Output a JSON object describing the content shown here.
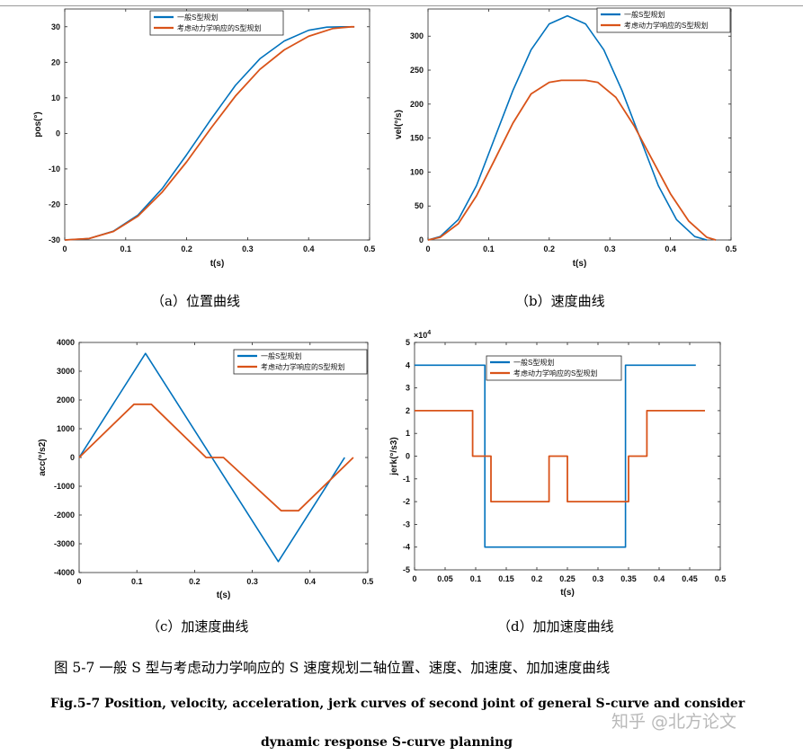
{
  "charts": [
    {
      "id": "a",
      "type": "line",
      "xlabel": "t(s)",
      "ylabel": "pos(°)",
      "xlim": [
        0,
        0.5
      ],
      "ylim": [
        -30,
        35
      ],
      "xticks": [
        0,
        0.1,
        0.2,
        0.3,
        0.4,
        0.5
      ],
      "yticks": [
        -30,
        -20,
        -10,
        0,
        10,
        20,
        30
      ],
      "xtick_labels": [
        "0",
        "0.1",
        "0.2",
        "0.3",
        "0.4",
        "0.5"
      ],
      "ytick_labels": [
        "-30",
        "-20",
        "-10",
        "0",
        "10",
        "20",
        "30"
      ],
      "legend": {
        "position": "top-center",
        "entries": [
          "一般S型规划",
          "考虑动力学响应的S型规划"
        ]
      },
      "series": [
        {
          "name": "一般S型规划",
          "color": "#0072BD",
          "x": [
            0,
            0.04,
            0.08,
            0.12,
            0.16,
            0.2,
            0.24,
            0.28,
            0.32,
            0.36,
            0.4,
            0.43,
            0.46,
            0.475
          ],
          "y": [
            -30,
            -29.6,
            -27.5,
            -23,
            -15.5,
            -6,
            4,
            13.5,
            21,
            26,
            29,
            29.9,
            30,
            30
          ]
        },
        {
          "name": "考虑动力学响应的S型规划",
          "color": "#D95319",
          "x": [
            0,
            0.04,
            0.08,
            0.12,
            0.16,
            0.2,
            0.24,
            0.28,
            0.32,
            0.36,
            0.4,
            0.44,
            0.47,
            0.475
          ],
          "y": [
            -30,
            -29.6,
            -27.6,
            -23.3,
            -16.5,
            -8,
            1.5,
            10.5,
            18,
            23.5,
            27.3,
            29.5,
            30,
            30
          ]
        }
      ]
    },
    {
      "id": "b",
      "type": "line",
      "xlabel": "t(s)",
      "ylabel": "vel(°/s)",
      "xlim": [
        0,
        0.5
      ],
      "ylim": [
        0,
        340
      ],
      "xticks": [
        0,
        0.1,
        0.2,
        0.3,
        0.4,
        0.5
      ],
      "yticks": [
        0,
        50,
        100,
        150,
        200,
        250,
        300
      ],
      "xtick_labels": [
        "0",
        "0.1",
        "0.2",
        "0.3",
        "0.4",
        "0.5"
      ],
      "ytick_labels": [
        "0",
        "50",
        "100",
        "150",
        "200",
        "250",
        "300"
      ],
      "legend": {
        "position": "top-right",
        "entries": [
          "一般S型规划",
          "考虑动力学响应的S型规划"
        ]
      },
      "series": [
        {
          "name": "一般S型规划",
          "color": "#0072BD",
          "x": [
            0,
            0.02,
            0.05,
            0.08,
            0.11,
            0.14,
            0.17,
            0.2,
            0.23,
            0.26,
            0.29,
            0.32,
            0.35,
            0.38,
            0.41,
            0.44,
            0.46
          ],
          "y": [
            0,
            5,
            30,
            80,
            150,
            220,
            280,
            318,
            330,
            318,
            280,
            220,
            150,
            80,
            30,
            5,
            0
          ]
        },
        {
          "name": "考虑动力学响应的S型规划",
          "color": "#D95319",
          "x": [
            0,
            0.02,
            0.05,
            0.08,
            0.11,
            0.14,
            0.17,
            0.2,
            0.22,
            0.26,
            0.28,
            0.31,
            0.34,
            0.37,
            0.4,
            0.43,
            0.46,
            0.475
          ],
          "y": [
            0,
            4,
            24,
            65,
            118,
            172,
            215,
            232,
            235,
            235,
            232,
            210,
            168,
            118,
            68,
            28,
            4,
            0
          ]
        }
      ]
    },
    {
      "id": "c",
      "type": "line",
      "xlabel": "t(s)",
      "ylabel": "acc(°/s2)",
      "xlim": [
        0,
        0.5
      ],
      "ylim": [
        -4000,
        4000
      ],
      "xticks": [
        0,
        0.1,
        0.2,
        0.3,
        0.4,
        0.5
      ],
      "yticks": [
        -4000,
        -3000,
        -2000,
        -1000,
        0,
        1000,
        2000,
        3000,
        4000
      ],
      "xtick_labels": [
        "0",
        "0.1",
        "0.2",
        "0.3",
        "0.4",
        "0.5"
      ],
      "ytick_labels": [
        "-4000",
        "-3000",
        "-2000",
        "-1000",
        "0",
        "1000",
        "2000",
        "3000",
        "4000"
      ],
      "legend": {
        "position": "top-right",
        "entries": [
          "一般S型规划",
          "考虑动力学响应的S型规划"
        ]
      },
      "series": [
        {
          "name": "一般S型规划",
          "color": "#0072BD",
          "x": [
            0,
            0.115,
            0.345,
            0.46
          ],
          "y": [
            0,
            3620,
            -3620,
            0
          ]
        },
        {
          "name": "考虑动力学响应的S型规划",
          "color": "#D95319",
          "x": [
            0,
            0.095,
            0.125,
            0.22,
            0.25,
            0.35,
            0.38,
            0.475
          ],
          "y": [
            0,
            1850,
            1850,
            0,
            0,
            -1850,
            -1850,
            0
          ]
        }
      ]
    },
    {
      "id": "d",
      "type": "line",
      "xlabel": "t(s)",
      "ylabel": "jerk(°/s3)",
      "exponent_label": "×10",
      "exponent_power": "4",
      "xlim": [
        0,
        0.5
      ],
      "ylim": [
        -5,
        5
      ],
      "xticks": [
        0,
        0.05,
        0.1,
        0.15,
        0.2,
        0.25,
        0.3,
        0.35,
        0.4,
        0.45,
        0.5
      ],
      "yticks": [
        -5,
        -4,
        -3,
        -2,
        -1,
        0,
        1,
        2,
        3,
        4,
        5
      ],
      "xtick_labels": [
        "0",
        "0.05",
        "0.1",
        "0.15",
        "0.2",
        "0.25",
        "0.3",
        "0.35",
        "0.4",
        "0.45",
        "0.5"
      ],
      "ytick_labels": [
        "-5",
        "-4",
        "-3",
        "-2",
        "-1",
        "0",
        "1",
        "2",
        "3",
        "4",
        "5"
      ],
      "legend": {
        "position": "top-center",
        "entries": [
          "一般S型规划",
          "考虑动力学响应的S型规划"
        ]
      },
      "series": [
        {
          "name": "一般S型规划",
          "color": "#0072BD",
          "x": [
            0,
            0.115,
            0.115,
            0.345,
            0.345,
            0.46
          ],
          "y": [
            4,
            4,
            -4,
            -4,
            4,
            4
          ]
        },
        {
          "name": "考虑动力学响应的S型规划",
          "color": "#D95319",
          "x": [
            0,
            0.095,
            0.095,
            0.125,
            0.125,
            0.22,
            0.22,
            0.25,
            0.25,
            0.35,
            0.35,
            0.38,
            0.38,
            0.475
          ],
          "y": [
            2,
            2,
            0,
            0,
            -2,
            -2,
            0,
            0,
            -2,
            -2,
            0,
            0,
            2,
            2
          ]
        }
      ]
    }
  ],
  "subcaptions": {
    "a": "（a）位置曲线",
    "b": "（b）速度曲线",
    "c": "（c）加速度曲线",
    "d": "（d）加加速度曲线"
  },
  "figure_caption": {
    "cn": "图 5-7  一般 S 型与考虑动力学响应的 S 速度规划二轴位置、速度、加速度、加加速度曲线",
    "en_line1": "Fig.5-7 Position, velocity, acceleration, jerk curves of second joint of general S-curve and consider",
    "en_line2": "dynamic response S-curve planning"
  },
  "watermark": "知乎 @北方论文"
}
